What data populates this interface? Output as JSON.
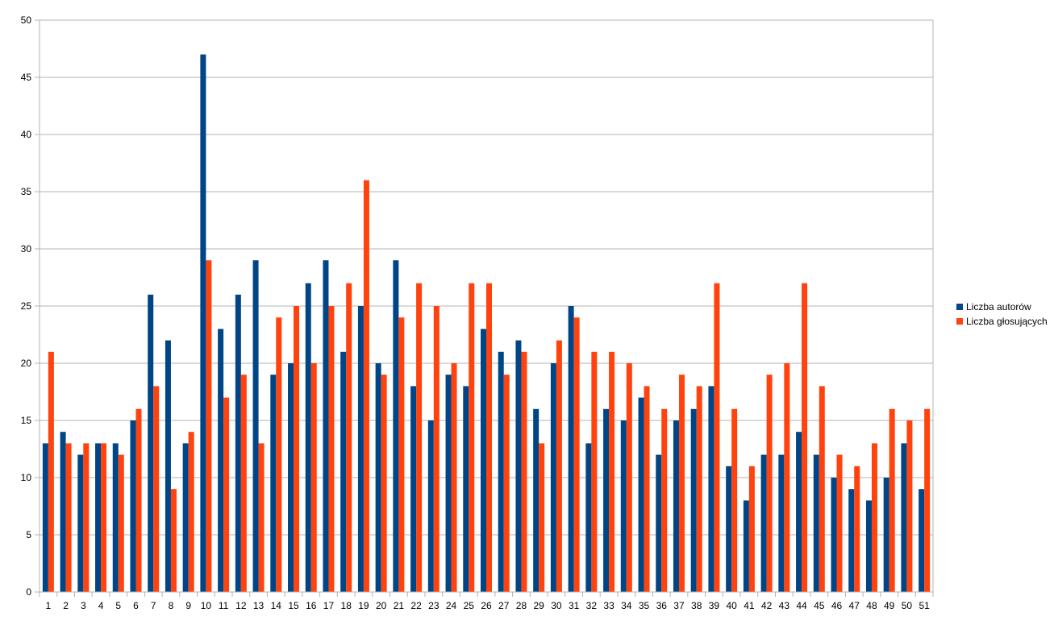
{
  "chart_data": {
    "type": "bar",
    "categories": [
      "1",
      "2",
      "3",
      "4",
      "5",
      "6",
      "7",
      "8",
      "9",
      "10",
      "11",
      "12",
      "13",
      "14",
      "15",
      "16",
      "17",
      "18",
      "19",
      "20",
      "21",
      "22",
      "23",
      "24",
      "25",
      "26",
      "27",
      "28",
      "29",
      "30",
      "31",
      "32",
      "33",
      "34",
      "35",
      "36",
      "37",
      "38",
      "39",
      "40",
      "41",
      "42",
      "43",
      "44",
      "45",
      "46",
      "47",
      "48",
      "49",
      "50",
      "51"
    ],
    "series": [
      {
        "name": "Liczba autorów",
        "color": "#004586",
        "values": [
          13,
          14,
          12,
          13,
          13,
          15,
          26,
          22,
          13,
          47,
          23,
          26,
          29,
          19,
          20,
          27,
          29,
          21,
          25,
          20,
          29,
          18,
          15,
          19,
          18,
          23,
          21,
          22,
          16,
          20,
          25,
          13,
          16,
          15,
          17,
          12,
          15,
          16,
          18,
          11,
          8,
          12,
          12,
          14,
          12,
          10,
          9,
          8,
          10,
          13,
          9
        ]
      },
      {
        "name": "Liczba głosujących",
        "color": "#ff420e",
        "values": [
          21,
          13,
          13,
          13,
          12,
          16,
          18,
          9,
          14,
          29,
          17,
          19,
          13,
          24,
          25,
          20,
          25,
          27,
          36,
          19,
          24,
          27,
          25,
          20,
          27,
          27,
          19,
          21,
          13,
          22,
          24,
          21,
          21,
          20,
          18,
          16,
          19,
          18,
          27,
          16,
          11,
          19,
          20,
          27,
          18,
          12,
          11,
          13,
          16,
          15,
          16
        ]
      }
    ],
    "yticks": [
      "0",
      "5",
      "10",
      "15",
      "20",
      "25",
      "30",
      "35",
      "40",
      "45",
      "50"
    ],
    "ylim": [
      0,
      50
    ],
    "grid": true,
    "legend_position": "right",
    "title": "",
    "xlabel": "",
    "ylabel": ""
  }
}
